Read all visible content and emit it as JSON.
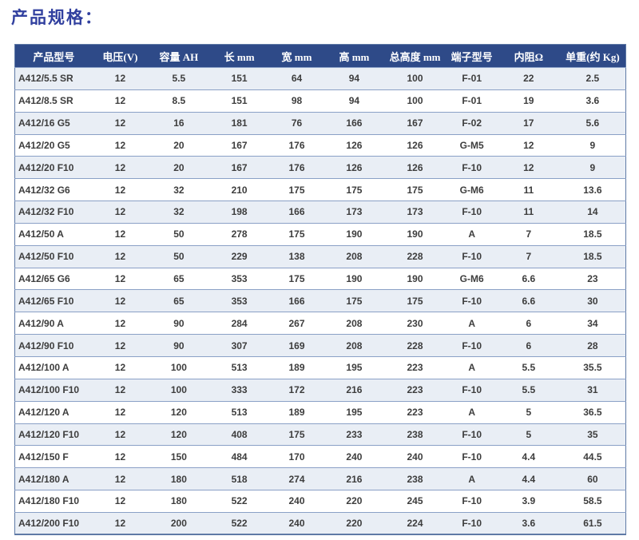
{
  "page": {
    "title": "产品规格："
  },
  "table": {
    "columns": [
      "产品型号",
      "电压(V)",
      "容量 AH",
      "长 mm",
      "宽 mm",
      "高 mm",
      "总高度 mm",
      "端子型号",
      "内阻Ω",
      "单重(约 Kg)"
    ],
    "rows": [
      [
        "A412/5.5 SR",
        "12",
        "5.5",
        "151",
        "64",
        "94",
        "100",
        "F-01",
        "22",
        "2.5"
      ],
      [
        "A412/8.5 SR",
        "12",
        "8.5",
        "151",
        "98",
        "94",
        "100",
        "F-01",
        "19",
        "3.6"
      ],
      [
        "A412/16 G5",
        "12",
        "16",
        "181",
        "76",
        "166",
        "167",
        "F-02",
        "17",
        "5.6"
      ],
      [
        "A412/20 G5",
        "12",
        "20",
        "167",
        "176",
        "126",
        "126",
        "G-M5",
        "12",
        "9"
      ],
      [
        "A412/20 F10",
        "12",
        "20",
        "167",
        "176",
        "126",
        "126",
        "F-10",
        "12",
        "9"
      ],
      [
        "A412/32 G6",
        "12",
        "32",
        "210",
        "175",
        "175",
        "175",
        "G-M6",
        "11",
        "13.6"
      ],
      [
        "A412/32 F10",
        "12",
        "32",
        "198",
        "166",
        "173",
        "173",
        "F-10",
        "11",
        "14"
      ],
      [
        "A412/50 A",
        "12",
        "50",
        "278",
        "175",
        "190",
        "190",
        "A",
        "7",
        "18.5"
      ],
      [
        "A412/50 F10",
        "12",
        "50",
        "229",
        "138",
        "208",
        "228",
        "F-10",
        "7",
        "18.5"
      ],
      [
        "A412/65 G6",
        "12",
        "65",
        "353",
        "175",
        "190",
        "190",
        "G-M6",
        "6.6",
        "23"
      ],
      [
        "A412/65 F10",
        "12",
        "65",
        "353",
        "166",
        "175",
        "175",
        "F-10",
        "6.6",
        "30"
      ],
      [
        "A412/90 A",
        "12",
        "90",
        "284",
        "267",
        "208",
        "230",
        "A",
        "6",
        "34"
      ],
      [
        "A412/90 F10",
        "12",
        "90",
        "307",
        "169",
        "208",
        "228",
        "F-10",
        "6",
        "28"
      ],
      [
        "A412/100 A",
        "12",
        "100",
        "513",
        "189",
        "195",
        "223",
        "A",
        "5.5",
        "35.5"
      ],
      [
        "A412/100 F10",
        "12",
        "100",
        "333",
        "172",
        "216",
        "223",
        "F-10",
        "5.5",
        "31"
      ],
      [
        "A412/120 A",
        "12",
        "120",
        "513",
        "189",
        "195",
        "223",
        "A",
        "5",
        "36.5"
      ],
      [
        "A412/120 F10",
        "12",
        "120",
        "408",
        "175",
        "233",
        "238",
        "F-10",
        "5",
        "35"
      ],
      [
        "A412/150 F",
        "12",
        "150",
        "484",
        "170",
        "240",
        "240",
        "F-10",
        "4.4",
        "44.5"
      ],
      [
        "A412/180 A",
        "12",
        "180",
        "518",
        "274",
        "216",
        "238",
        "A",
        "4.4",
        "60"
      ],
      [
        "A412/180 F10",
        "12",
        "180",
        "522",
        "240",
        "220",
        "245",
        "F-10",
        "3.9",
        "58.5"
      ],
      [
        "A412/200 F10",
        "12",
        "200",
        "522",
        "240",
        "220",
        "224",
        "F-10",
        "3.6",
        "61.5"
      ]
    ]
  },
  "colors": {
    "header_bg": "#2e4a88",
    "header_text": "#ffffff",
    "row_alt_bg": "#e9eef5",
    "row_bg": "#ffffff",
    "row_border": "#8aa0c6",
    "outer_border": "#5f7aa6",
    "title_color": "#31409f",
    "cell_text": "#3d3d3d"
  }
}
